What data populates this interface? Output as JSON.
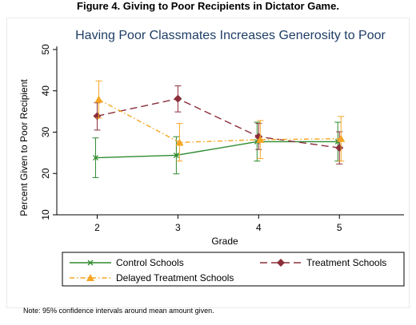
{
  "figure_title": "Figure 4. Giving to Poor Recipients in Dictator Game.",
  "note": "Note: 95% confidence intervals around mean amount given.",
  "colors": {
    "control": "#2e8b2e",
    "treatment": "#8b2e3a",
    "delayed": "#f5a623",
    "title": "#1f3e66",
    "axis": "#000000"
  },
  "chart_data": {
    "type": "line",
    "title": "Having Poor Classmates Increases Generosity to Poor",
    "xlabel": "Grade",
    "ylabel": "Percent Given to Poor Recipient",
    "xlim": [
      1.5,
      5.8
    ],
    "ylim": [
      10,
      50
    ],
    "xticks": [
      2,
      3,
      4,
      5
    ],
    "yticks": [
      10,
      20,
      30,
      40,
      50
    ],
    "grid": false,
    "legend_position": "bottom",
    "series": [
      {
        "name": "Control Schools",
        "marker": "x",
        "line_style": "solid",
        "x": [
          2,
          3,
          4,
          5
        ],
        "y": [
          23.8,
          24.4,
          27.7,
          27.7
        ],
        "ci_low": [
          19.0,
          19.9,
          23.0,
          23.0
        ],
        "ci_high": [
          28.6,
          28.9,
          32.4,
          32.4
        ]
      },
      {
        "name": "Treatment Schools",
        "marker": "diamond",
        "line_style": "long-dash",
        "x": [
          2,
          3,
          4,
          5
        ],
        "y": [
          33.9,
          38.1,
          28.9,
          26.2
        ],
        "ci_low": [
          30.5,
          34.9,
          25.8,
          22.3
        ],
        "ci_high": [
          37.1,
          41.2,
          32.1,
          30.1
        ]
      },
      {
        "name": "Delayed Treatment Schools",
        "marker": "triangle",
        "line_style": "dash-dot",
        "x": [
          2,
          3,
          4,
          5
        ],
        "y": [
          37.9,
          27.5,
          28.2,
          28.4
        ],
        "ci_low": [
          33.4,
          23.0,
          23.6,
          23.0
        ],
        "ci_high": [
          42.4,
          32.1,
          32.8,
          33.8
        ]
      }
    ]
  }
}
